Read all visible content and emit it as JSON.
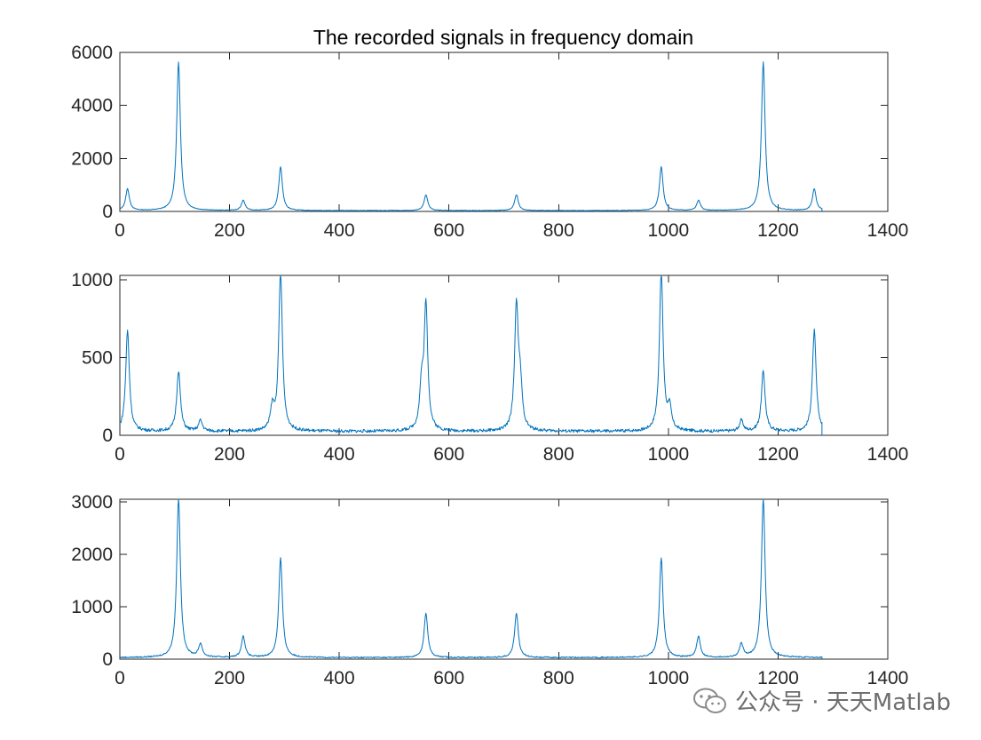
{
  "chart_data": [
    {
      "type": "line",
      "title": "The recorded signals in frequency domain",
      "xlabel": "",
      "ylabel": "",
      "xlim": [
        0,
        1400
      ],
      "ylim": [
        0,
        6000
      ],
      "xticks": [
        0,
        200,
        400,
        600,
        800,
        1000,
        1200,
        1400
      ],
      "yticks": [
        0,
        2000,
        4000,
        6000
      ],
      "data_end": 1280,
      "baseline": 30,
      "color": "#0072BD",
      "peaks": [
        {
          "x": 14,
          "y": 820
        },
        {
          "x": 107,
          "y": 5600
        },
        {
          "x": 225,
          "y": 380
        },
        {
          "x": 293,
          "y": 1650
        },
        {
          "x": 558,
          "y": 600
        },
        {
          "x": 723,
          "y": 600
        },
        {
          "x": 987,
          "y": 1650
        },
        {
          "x": 1055,
          "y": 380
        },
        {
          "x": 1173,
          "y": 5600
        },
        {
          "x": 1266,
          "y": 820
        }
      ]
    },
    {
      "type": "line",
      "title": "",
      "xlabel": "",
      "ylabel": "",
      "xlim": [
        0,
        1400
      ],
      "ylim": [
        0,
        1030
      ],
      "xticks": [
        0,
        200,
        400,
        600,
        800,
        1000,
        1200,
        1400
      ],
      "yticks": [
        0,
        500,
        1000
      ],
      "data_end": 1280,
      "baseline": 25,
      "color": "#0072BD",
      "peaks": [
        {
          "x": 14,
          "y": 650
        },
        {
          "x": 107,
          "y": 390
        },
        {
          "x": 147,
          "y": 70
        },
        {
          "x": 278,
          "y": 140
        },
        {
          "x": 293,
          "y": 1030
        },
        {
          "x": 550,
          "y": 260
        },
        {
          "x": 558,
          "y": 800
        },
        {
          "x": 723,
          "y": 800
        },
        {
          "x": 730,
          "y": 260
        },
        {
          "x": 987,
          "y": 1030
        },
        {
          "x": 1002,
          "y": 140
        },
        {
          "x": 1133,
          "y": 70
        },
        {
          "x": 1173,
          "y": 390
        },
        {
          "x": 1266,
          "y": 650
        }
      ]
    },
    {
      "type": "line",
      "title": "",
      "xlabel": "",
      "ylabel": "",
      "xlim": [
        0,
        1400
      ],
      "ylim": [
        0,
        3050
      ],
      "xticks": [
        0,
        200,
        400,
        600,
        800,
        1000,
        1200,
        1400
      ],
      "yticks": [
        0,
        1000,
        2000,
        3000
      ],
      "data_end": 1280,
      "baseline": 30,
      "color": "#0072BD",
      "peaks": [
        {
          "x": 107,
          "y": 3050
        },
        {
          "x": 147,
          "y": 250
        },
        {
          "x": 225,
          "y": 400
        },
        {
          "x": 293,
          "y": 1900
        },
        {
          "x": 558,
          "y": 850
        },
        {
          "x": 723,
          "y": 850
        },
        {
          "x": 987,
          "y": 1900
        },
        {
          "x": 1055,
          "y": 400
        },
        {
          "x": 1133,
          "y": 250
        },
        {
          "x": 1173,
          "y": 3050
        }
      ]
    }
  ],
  "watermark": {
    "text": "公众号 · 天天Matlab",
    "icon": "wechat-icon"
  }
}
